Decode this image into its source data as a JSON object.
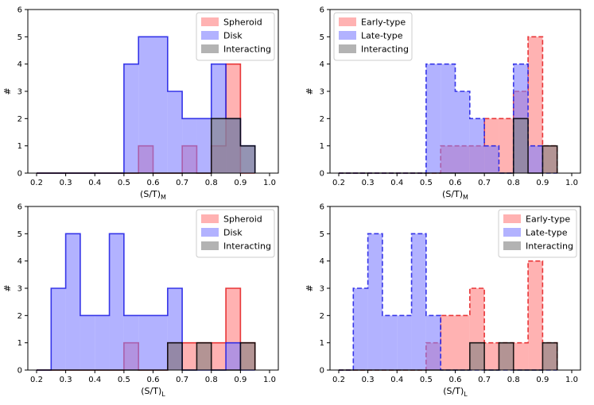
{
  "chart_data": [
    {
      "type": "histogram",
      "panel": "top-left",
      "xlabel": "(S/T)",
      "xlabel_sub": "M",
      "ylabel": "#",
      "xlim": [
        0.17,
        1.03
      ],
      "ylim": [
        0,
        6
      ],
      "xticks": [
        "0.2",
        "0.3",
        "0.4",
        "0.5",
        "0.6",
        "0.7",
        "0.8",
        "0.9",
        "1.0"
      ],
      "yticks": [
        "0",
        "1",
        "2",
        "3",
        "4",
        "5",
        "6"
      ],
      "legend_position": "top-right",
      "bin_edges": [
        0.2,
        0.25,
        0.3,
        0.35,
        0.4,
        0.45,
        0.5,
        0.55,
        0.6,
        0.65,
        0.7,
        0.75,
        0.8,
        0.85,
        0.9,
        0.95
      ],
      "series": [
        {
          "name": "Spheroid",
          "color": "#ff7f7f",
          "edge": "#e41a1c",
          "values": [
            0,
            0,
            0,
            0,
            0,
            0,
            0,
            1,
            0,
            0,
            1,
            0,
            1,
            4,
            0
          ]
        },
        {
          "name": "Disk",
          "color": "#7f7fff",
          "edge": "#1a1ae4",
          "values": [
            0,
            0,
            0,
            0,
            0,
            0,
            4,
            5,
            5,
            3,
            2,
            2,
            4,
            2,
            1
          ]
        },
        {
          "name": "Interacting",
          "color": "#808080",
          "edge": "#000000",
          "values": [
            0,
            0,
            0,
            0,
            0,
            0,
            0,
            0,
            0,
            0,
            0,
            0,
            2,
            2,
            1
          ]
        }
      ]
    },
    {
      "type": "histogram",
      "panel": "top-right",
      "xlabel": "(S/T)",
      "xlabel_sub": "M",
      "ylabel": "#",
      "xlim": [
        0.17,
        1.03
      ],
      "ylim": [
        0,
        6
      ],
      "xticks": [
        "0.2",
        "0.3",
        "0.4",
        "0.5",
        "0.6",
        "0.7",
        "0.8",
        "0.9",
        "1.0"
      ],
      "yticks": [
        "0",
        "1",
        "2",
        "3",
        "4",
        "5",
        "6"
      ],
      "legend_position": "top-left",
      "bin_edges": [
        0.2,
        0.25,
        0.3,
        0.35,
        0.4,
        0.45,
        0.5,
        0.55,
        0.6,
        0.65,
        0.7,
        0.75,
        0.8,
        0.85,
        0.9,
        0.95
      ],
      "series": [
        {
          "name": "Early-type",
          "color": "#ff7f7f",
          "edge": "#e41a1c",
          "dashed": true,
          "values": [
            0,
            0,
            0,
            0,
            0,
            0,
            0,
            1,
            1,
            1,
            2,
            2,
            3,
            5,
            1
          ]
        },
        {
          "name": "Late-type",
          "color": "#7f7fff",
          "edge": "#1a1ae4",
          "dashed": true,
          "values": [
            0,
            0,
            0,
            0,
            0,
            0,
            4,
            4,
            3,
            2,
            1,
            0,
            4,
            1,
            0
          ]
        },
        {
          "name": "Interacting",
          "color": "#808080",
          "edge": "#000000",
          "values": [
            0,
            0,
            0,
            0,
            0,
            0,
            0,
            0,
            0,
            0,
            0,
            0,
            2,
            0,
            1
          ]
        }
      ]
    },
    {
      "type": "histogram",
      "panel": "bottom-left",
      "xlabel": "(S/T)",
      "xlabel_sub": "L",
      "ylabel": "#",
      "xlim": [
        0.17,
        1.03
      ],
      "ylim": [
        0,
        6
      ],
      "xticks": [
        "0.2",
        "0.3",
        "0.4",
        "0.5",
        "0.6",
        "0.7",
        "0.8",
        "0.9",
        "1.0"
      ],
      "yticks": [
        "0",
        "1",
        "2",
        "3",
        "4",
        "5",
        "6"
      ],
      "legend_position": "top-right",
      "bin_edges": [
        0.2,
        0.25,
        0.3,
        0.35,
        0.4,
        0.45,
        0.5,
        0.55,
        0.6,
        0.65,
        0.7,
        0.75,
        0.8,
        0.85,
        0.9,
        0.95
      ],
      "series": [
        {
          "name": "Spheroid",
          "color": "#ff7f7f",
          "edge": "#e41a1c",
          "values": [
            0,
            0,
            0,
            0,
            0,
            0,
            1,
            0,
            0,
            1,
            1,
            1,
            1,
            3,
            1
          ]
        },
        {
          "name": "Disk",
          "color": "#7f7fff",
          "edge": "#1a1ae4",
          "values": [
            0,
            3,
            5,
            2,
            2,
            5,
            2,
            2,
            2,
            3,
            0,
            0,
            0,
            1,
            0
          ]
        },
        {
          "name": "Interacting",
          "color": "#808080",
          "edge": "#000000",
          "values": [
            0,
            0,
            0,
            0,
            0,
            0,
            0,
            0,
            0,
            1,
            0,
            1,
            0,
            0,
            1
          ]
        }
      ]
    },
    {
      "type": "histogram",
      "panel": "bottom-right",
      "xlabel": "(S/T)",
      "xlabel_sub": "L",
      "ylabel": "#",
      "xlim": [
        0.17,
        1.03
      ],
      "ylim": [
        0,
        6
      ],
      "xticks": [
        "0.2",
        "0.3",
        "0.4",
        "0.5",
        "0.6",
        "0.7",
        "0.8",
        "0.9",
        "1.0"
      ],
      "yticks": [
        "0",
        "1",
        "2",
        "3",
        "4",
        "5",
        "6"
      ],
      "legend_position": "top-right",
      "bin_edges": [
        0.2,
        0.25,
        0.3,
        0.35,
        0.4,
        0.45,
        0.5,
        0.55,
        0.6,
        0.65,
        0.7,
        0.75,
        0.8,
        0.85,
        0.9,
        0.95
      ],
      "series": [
        {
          "name": "Early-type",
          "color": "#ff7f7f",
          "edge": "#e41a1c",
          "dashed": true,
          "values": [
            0,
            0,
            0,
            0,
            0,
            0,
            1,
            2,
            2,
            3,
            1,
            1,
            1,
            4,
            1
          ]
        },
        {
          "name": "Late-type",
          "color": "#7f7fff",
          "edge": "#1a1ae4",
          "dashed": true,
          "values": [
            0,
            3,
            5,
            2,
            2,
            5,
            2,
            0,
            0,
            0,
            0,
            0,
            0,
            0,
            0
          ]
        },
        {
          "name": "Interacting",
          "color": "#808080",
          "edge": "#000000",
          "values": [
            0,
            0,
            0,
            0,
            0,
            0,
            0,
            0,
            0,
            1,
            0,
            1,
            0,
            0,
            1
          ]
        }
      ]
    }
  ]
}
